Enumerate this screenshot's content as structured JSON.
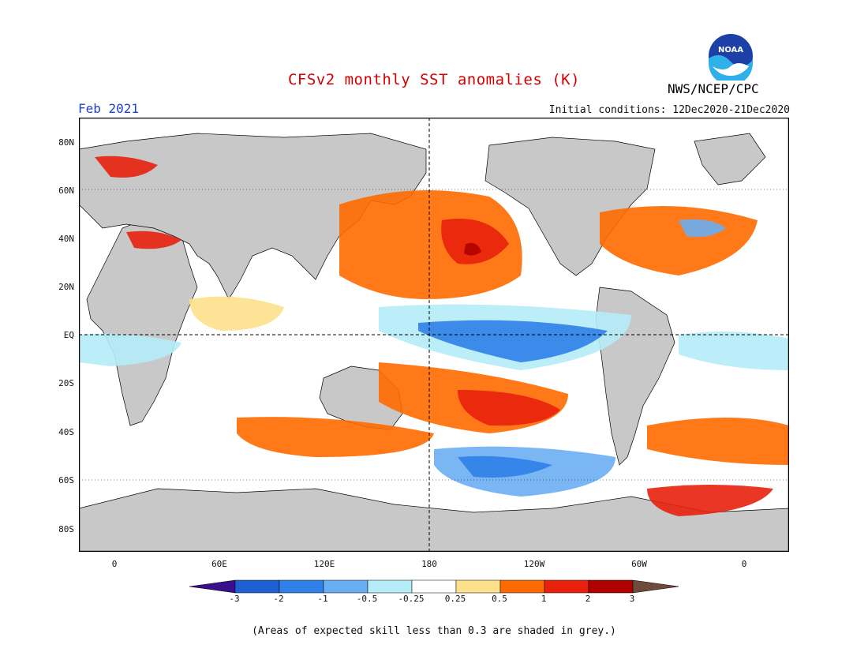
{
  "header": {
    "title": "CFSv2 monthly SST anomalies (K)",
    "title_color": "#d40000",
    "month": "Feb 2021",
    "month_color": "#2040d0",
    "initial_conditions": "Initial conditions: 12Dec2020-21Dec2020",
    "agency": "NWS/NCEP/CPC",
    "logo_text": "NOAA"
  },
  "map": {
    "lat_labels": [
      "80N",
      "60N",
      "40N",
      "20N",
      "EQ",
      "20S",
      "40S",
      "60S",
      "80S"
    ],
    "lon_labels": [
      "0",
      "60E",
      "120E",
      "180",
      "120W",
      "60W",
      "0"
    ],
    "land_color": "#c8c8c8"
  },
  "colorbar": {
    "tick_labels": [
      "-3",
      "-2",
      "-1",
      "-0.5",
      "-0.25",
      "0.25",
      "0.5",
      "1",
      "2",
      "3"
    ],
    "colors": [
      "#3a0f8c",
      "#1e5fd2",
      "#2f80e8",
      "#6aaef2",
      "#b4ecf8",
      "#ffffff",
      "#fde08a",
      "#ff6a00",
      "#e8200c",
      "#b00000",
      "#6e4b3a"
    ]
  },
  "note": "(Areas of expected skill less than 0.3 are shaded in grey.)"
}
